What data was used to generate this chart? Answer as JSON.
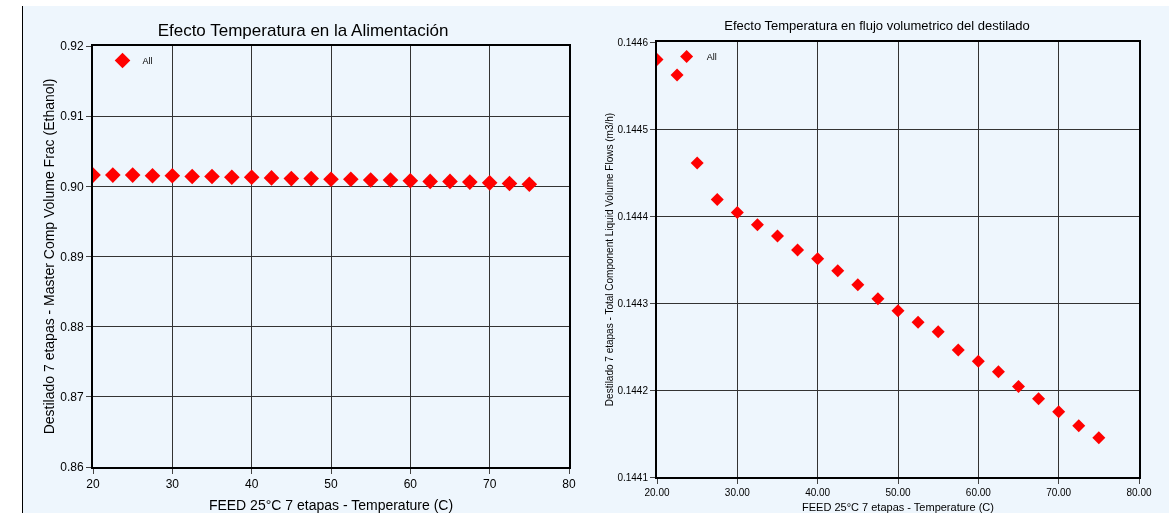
{
  "chart_data": [
    {
      "type": "scatter",
      "title": "Efecto Temperatura en la Alimentación",
      "xlabel": "FEED 25°C 7 etapas - Temperature (C)",
      "ylabel": "Destilado 7 etapas - Master Comp Volume Frac (Ethanol)",
      "x": [
        20,
        22.5,
        25,
        27.5,
        30,
        32.5,
        35,
        37.5,
        40,
        42.5,
        45,
        47.5,
        50,
        52.5,
        55,
        57.5,
        60,
        62.5,
        65,
        67.5,
        70,
        72.5,
        75
      ],
      "series": [
        {
          "name": "All",
          "color": "#ff0000",
          "values": [
            0.9016,
            0.9016,
            0.9016,
            0.9015,
            0.9015,
            0.9014,
            0.9014,
            0.9013,
            0.9013,
            0.9012,
            0.9011,
            0.9011,
            0.901,
            0.901,
            0.9009,
            0.9009,
            0.9008,
            0.9007,
            0.9007,
            0.9006,
            0.9005,
            0.9004,
            0.9003
          ]
        }
      ],
      "xlim": [
        20,
        80
      ],
      "xticks": [
        20,
        30,
        40,
        50,
        60,
        70,
        80
      ],
      "ylim": [
        0.86,
        0.92
      ],
      "yticks": [
        0.86,
        0.87,
        0.88,
        0.89,
        "0.90",
        0.91,
        0.92
      ],
      "grid": true,
      "legend": "top left",
      "marker": "diamond"
    },
    {
      "type": "scatter",
      "title": "Efecto Temperatura en flujo volumetrico del destilado",
      "xlabel": "FEED 25°C 7 etapas - Temperature (C)",
      "ylabel": "Destilado 7 etapas - Total Component Liquid Volume Flows (m3/h)",
      "x": [
        20,
        22.5,
        25,
        27.5,
        30,
        32.5,
        35,
        37.5,
        40,
        42.5,
        45,
        47.5,
        50,
        52.5,
        55,
        57.5,
        60,
        62.5,
        65,
        67.5,
        70,
        72.5,
        75
      ],
      "series": [
        {
          "name": "All",
          "color": "#ff0000",
          "values": [
            0.14458,
            0.144562,
            0.144461,
            0.144419,
            0.144404,
            0.14439,
            0.144377,
            0.144361,
            0.144351,
            0.144337,
            0.144321,
            0.144305,
            0.144291,
            0.144278,
            0.144267,
            0.144246,
            0.144233,
            0.144221,
            0.144204,
            0.14419,
            0.144175,
            0.144159,
            0.144145
          ]
        }
      ],
      "xlim": [
        20,
        80
      ],
      "xticks": [
        {
          "value": 20,
          "label": "20.00"
        },
        {
          "value": 30,
          "label": "30.00"
        },
        {
          "value": 40,
          "label": "40.00"
        },
        {
          "value": 50,
          "label": "50.00"
        },
        {
          "value": 60,
          "label": "60.00"
        },
        {
          "value": 70,
          "label": "70.00"
        },
        {
          "value": 80,
          "label": "80.00"
        }
      ],
      "ylim": [
        0.1441,
        0.1446
      ],
      "yticks": [
        0.1441,
        0.1442,
        0.1443,
        0.1444,
        0.1445,
        0.1446
      ],
      "grid": true,
      "legend": "top left",
      "marker": "diamond"
    }
  ]
}
